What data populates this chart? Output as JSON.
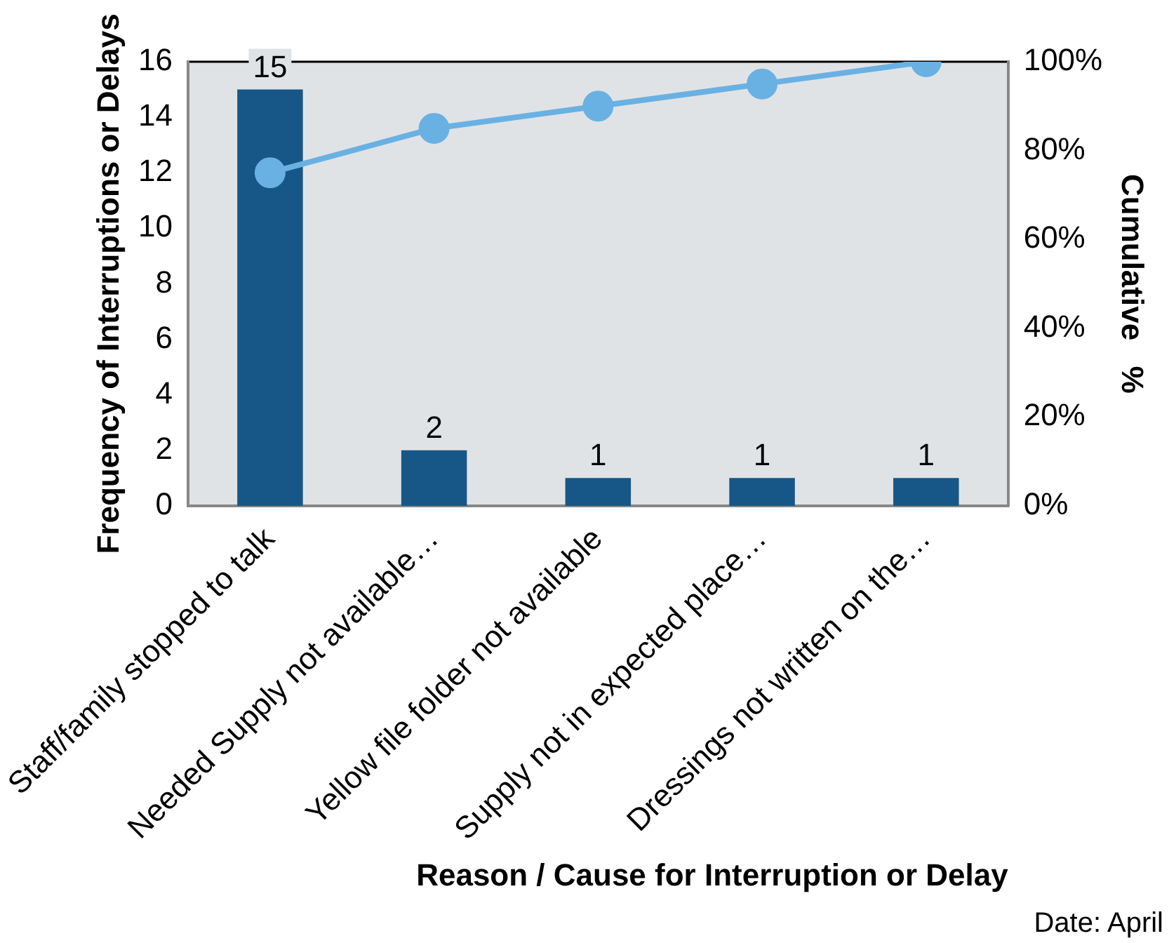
{
  "chart_data": {
    "type": "bar",
    "xlabel": "Reason / Cause for Interruption or Delay",
    "ylabel": "Frequency of Interruptions or Delays",
    "y2label": "Cumulative   %",
    "categories": [
      "Staff/family stopped to talk",
      "Needed Supply not available…",
      "Yellow file folder not available",
      "Supply not in expected place…",
      "Dressings not written on the…"
    ],
    "series": [
      {
        "color": "#175788",
        "values": [
          15,
          2,
          1,
          1,
          1
        ],
        "value_labels": [
          "15",
          "2",
          "1",
          "1",
          "1"
        ]
      },
      {
        "type": "line",
        "axis": "y2",
        "color": "#69b1e3",
        "marker": "circle",
        "values": [
          75,
          85,
          90,
          95,
          100
        ]
      }
    ],
    "ylim": [
      0,
      16
    ],
    "yticks": [
      0,
      2,
      4,
      6,
      8,
      10,
      12,
      14,
      16
    ],
    "y2lim": [
      0,
      100
    ],
    "y2ticks": [
      {
        "value": 0,
        "label": "0%"
      },
      {
        "value": 20,
        "label": "20%"
      },
      {
        "value": 40,
        "label": "40%"
      },
      {
        "value": 60,
        "label": "60%"
      },
      {
        "value": 80,
        "label": "80%"
      },
      {
        "value": 100,
        "label": "100%"
      }
    ],
    "annotations": [
      "Date: April"
    ]
  }
}
